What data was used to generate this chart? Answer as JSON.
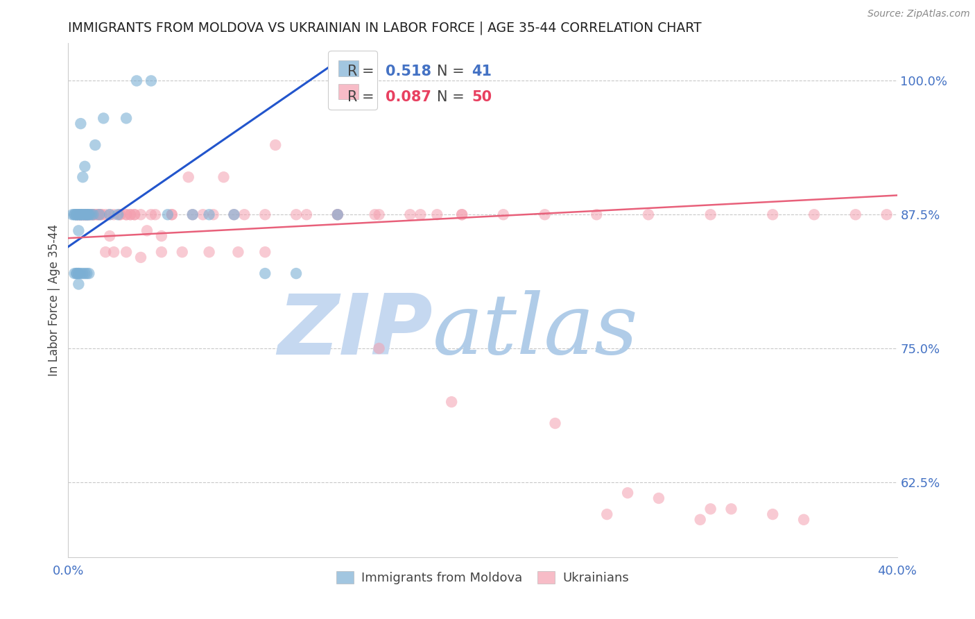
{
  "title": "IMMIGRANTS FROM MOLDOVA VS UKRAINIAN IN LABOR FORCE | AGE 35-44 CORRELATION CHART",
  "source": "Source: ZipAtlas.com",
  "ylabel": "In Labor Force | Age 35-44",
  "xlim": [
    0.0,
    0.4
  ],
  "ylim": [
    0.555,
    1.035
  ],
  "title_color": "#222222",
  "axis_color": "#4472c4",
  "background_color": "#ffffff",
  "grid_color": "#c8c8c8",
  "watermark_zip": "ZIP",
  "watermark_atlas": "atlas",
  "watermark_color_zip": "#c5d8f0",
  "watermark_color_atlas": "#b0cce8",
  "legend_R_blue": "0.518",
  "legend_N_blue": "41",
  "legend_R_pink": "0.087",
  "legend_N_pink": "50",
  "blue_color": "#7bafd4",
  "pink_color": "#f4a0b0",
  "blue_line_color": "#2255cc",
  "pink_line_color": "#e8607a",
  "blue_line_x": [
    0.0,
    0.135
  ],
  "blue_line_y": [
    0.845,
    1.025
  ],
  "pink_line_x": [
    0.0,
    0.4
  ],
  "pink_line_y": [
    0.853,
    0.893
  ],
  "blue_scatter_x": [
    0.002,
    0.003,
    0.003,
    0.004,
    0.004,
    0.004,
    0.005,
    0.005,
    0.005,
    0.006,
    0.006,
    0.006,
    0.006,
    0.007,
    0.007,
    0.007,
    0.008,
    0.008,
    0.008,
    0.009,
    0.009,
    0.009,
    0.01,
    0.01,
    0.011,
    0.012,
    0.013,
    0.015,
    0.017,
    0.02,
    0.024,
    0.028,
    0.033,
    0.04,
    0.048,
    0.06,
    0.068,
    0.08,
    0.095,
    0.11,
    0.13
  ],
  "blue_scatter_y": [
    0.875,
    0.875,
    0.875,
    0.875,
    0.875,
    0.875,
    0.875,
    0.875,
    0.86,
    0.875,
    0.875,
    0.875,
    0.96,
    0.875,
    0.875,
    0.91,
    0.875,
    0.875,
    0.92,
    0.875,
    0.875,
    0.875,
    0.875,
    0.875,
    0.875,
    0.875,
    0.94,
    0.875,
    0.965,
    0.875,
    0.875,
    0.965,
    1.0,
    1.0,
    0.875,
    0.875,
    0.875,
    0.875,
    0.82,
    0.82,
    0.875
  ],
  "blue_scatter_x2": [
    0.003,
    0.004,
    0.004,
    0.005,
    0.005,
    0.005,
    0.006,
    0.007,
    0.008,
    0.009,
    0.01
  ],
  "blue_scatter_y2": [
    0.82,
    0.82,
    0.82,
    0.82,
    0.82,
    0.81,
    0.82,
    0.82,
    0.82,
    0.82,
    0.82
  ],
  "pink_scatter_x": [
    0.004,
    0.005,
    0.006,
    0.007,
    0.008,
    0.008,
    0.009,
    0.01,
    0.011,
    0.012,
    0.013,
    0.014,
    0.015,
    0.016,
    0.018,
    0.02,
    0.022,
    0.025,
    0.028,
    0.03,
    0.032,
    0.035,
    0.04,
    0.045,
    0.05,
    0.058,
    0.065,
    0.075,
    0.085,
    0.1,
    0.115,
    0.13,
    0.148,
    0.165,
    0.178,
    0.19,
    0.21,
    0.23,
    0.255,
    0.28,
    0.31,
    0.34,
    0.36,
    0.38,
    0.395
  ],
  "pink_scatter_y": [
    0.875,
    0.875,
    0.875,
    0.875,
    0.875,
    0.875,
    0.875,
    0.875,
    0.875,
    0.875,
    0.875,
    0.875,
    0.875,
    0.875,
    0.875,
    0.875,
    0.875,
    0.875,
    0.875,
    0.875,
    0.875,
    0.875,
    0.875,
    0.855,
    0.875,
    0.91,
    0.875,
    0.91,
    0.875,
    0.94,
    0.875,
    0.875,
    0.875,
    0.875,
    0.875,
    0.875,
    0.875,
    0.875,
    0.875,
    0.875,
    0.875,
    0.875,
    0.875,
    0.875,
    0.875
  ],
  "pink_scatter_x2": [
    0.005,
    0.006,
    0.007,
    0.008,
    0.009,
    0.01,
    0.012,
    0.014,
    0.016,
    0.02,
    0.025,
    0.028,
    0.03,
    0.032,
    0.038,
    0.042,
    0.05,
    0.06,
    0.07,
    0.08,
    0.095,
    0.11,
    0.13,
    0.15,
    0.17,
    0.19
  ],
  "pink_scatter_y2": [
    0.875,
    0.875,
    0.875,
    0.875,
    0.875,
    0.875,
    0.875,
    0.875,
    0.875,
    0.855,
    0.875,
    0.875,
    0.875,
    0.875,
    0.86,
    0.875,
    0.875,
    0.875,
    0.875,
    0.875,
    0.875,
    0.875,
    0.875,
    0.875,
    0.875,
    0.875
  ],
  "pink_scatter_x3": [
    0.018,
    0.022,
    0.028,
    0.035,
    0.045,
    0.055,
    0.068,
    0.082,
    0.095,
    0.15,
    0.235,
    0.27,
    0.32,
    0.355
  ],
  "pink_scatter_y3": [
    0.84,
    0.84,
    0.84,
    0.835,
    0.84,
    0.84,
    0.84,
    0.84,
    0.84,
    0.75,
    0.68,
    0.615,
    0.6,
    0.59
  ],
  "pink_low_x": [
    0.185,
    0.26,
    0.285,
    0.305,
    0.31,
    0.34
  ],
  "pink_low_y": [
    0.7,
    0.595,
    0.61,
    0.59,
    0.6,
    0.595
  ]
}
